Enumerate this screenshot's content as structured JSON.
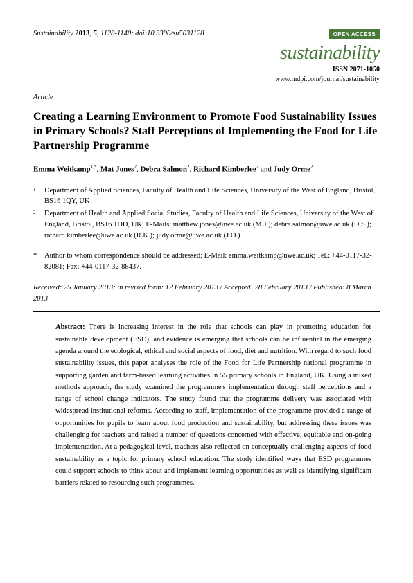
{
  "header": {
    "citation_journal": "Sustainability",
    "citation_year": "2013",
    "citation_volume": "5",
    "citation_pages": "1128-1140; doi:10.3390/su5031128",
    "open_access_label": "OPEN ACCESS",
    "journal_name": "sustainability",
    "issn_label": "ISSN 2071-1050",
    "url": "www.mdpi.com/journal/sustainability"
  },
  "article_label": "Article",
  "title": "Creating a Learning Environment to Promote Food Sustainability Issues in Primary Schools? Staff Perceptions of Implementing the Food for Life Partnership Programme",
  "authors": [
    {
      "name": "Emma Weitkamp",
      "affil": "1,*"
    },
    {
      "name": "Mat Jones",
      "affil": "2"
    },
    {
      "name": "Debra Salmon",
      "affil": "2"
    },
    {
      "name": "Richard Kimberlee",
      "affil": "2"
    },
    {
      "name": "Judy Orme",
      "affil": "2"
    }
  ],
  "affiliations": [
    {
      "num": "1",
      "text": "Department of Applied Sciences, Faculty of Health and Life Sciences, University of the West of England, Bristol, BS16 1QY, UK"
    },
    {
      "num": "2",
      "text": "Department of Health and Applied Social Studies, Faculty of Health and Life Sciences, University of the West of England, Bristol, BS16 1DD, UK; E-Mails: matthew.jones@uwe.ac.uk (M.J.); debra.salmon@uwe.ac.uk (D.S.); richard.kimberlee@uwe.ac.uk (R.K.); judy.orme@uwe.ac.uk (J.O.)"
    }
  ],
  "corresponding": {
    "star": "*",
    "text": "Author to whom correspondence should be addressed; E-Mail: emma.weitkamp@uwe.ac.uk; Tel.: +44-0117-32-82081; Fax: +44-0117-32-88437."
  },
  "dates": "Received: 25 January 2013; in revised form: 12 February 2013 / Accepted: 28 February 2013 / Published: 8 March 2013",
  "abstract": {
    "label": "Abstract:",
    "text": "There is increasing interest in the role that schools can play in promoting education for sustainable development (ESD), and evidence is emerging that schools can be influential in the emerging agenda around the ecological, ethical and social aspects of food, diet and nutrition. With regard to such food sustainability issues, this paper analyses the role of the Food for Life Partnership national programme in supporting garden and farm-based learning activities in 55 primary schools in England, UK. Using a mixed methods approach, the study examined the programme's implementation through staff perceptions and a range of school change indicators. The study found that the programme delivery was associated with widespread institutional reforms. According to staff, implementation of the programme provided a range of opportunities for pupils to learn about food production and sustainability, but addressing these issues was challenging for teachers and raised a number of questions concerned with effective, equitable and on-going implementation. At a pedagogical level, teachers also reflected on conceptually challenging aspects of food sustainability as a topic for primary school education. The study identified ways that ESD programmes could support schools to think about and implement learning opportunities as well as identifying significant barriers related to resourcing such programmes."
  }
}
